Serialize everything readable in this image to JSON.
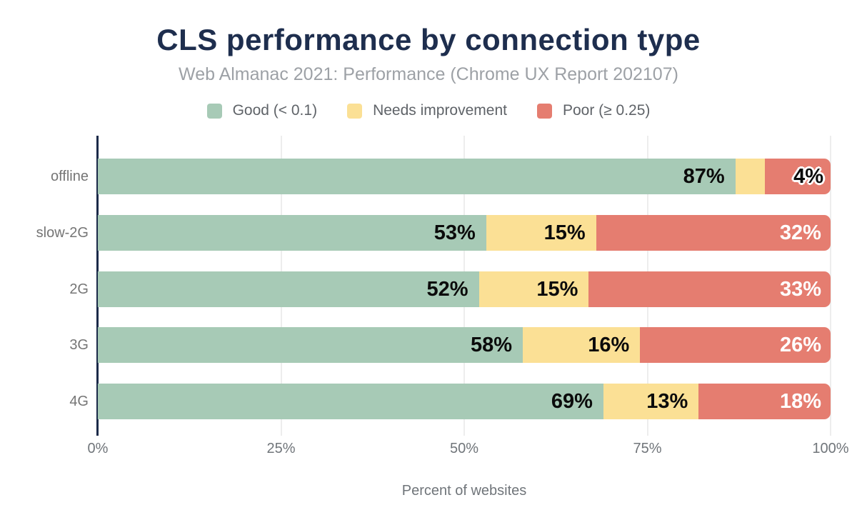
{
  "chart": {
    "title": "CLS performance by connection type",
    "subtitle": "Web Almanac 2021: Performance (Chrome UX Report 202107)",
    "x_axis_label": "Percent of websites"
  },
  "legend": {
    "items": [
      {
        "label": "Good (< 0.1)",
        "color": "#a7cab6"
      },
      {
        "label": "Needs improvement",
        "color": "#fbe095"
      },
      {
        "label": "Poor (≥ 0.25)",
        "color": "#e57d70"
      }
    ]
  },
  "x_axis": {
    "ticks": [
      {
        "label": "0%",
        "value": 0
      },
      {
        "label": "25%",
        "value": 25
      },
      {
        "label": "50%",
        "value": 50
      },
      {
        "label": "75%",
        "value": 75
      },
      {
        "label": "100%",
        "value": 100
      }
    ]
  },
  "chart_data": {
    "type": "bar",
    "orientation": "horizontal",
    "stacked": true,
    "title": "CLS performance by connection type",
    "subtitle": "Web Almanac 2021: Performance (Chrome UX Report 202107)",
    "xlabel": "Percent of websites",
    "xlim": [
      0,
      100
    ],
    "x_tick_labels": [
      "0%",
      "25%",
      "50%",
      "75%",
      "100%"
    ],
    "grid": "vertical",
    "legend_position": "top",
    "categories": [
      "offline",
      "slow-2G",
      "2G",
      "3G",
      "4G"
    ],
    "series": [
      {
        "name": "Good (< 0.1)",
        "key": "good",
        "color": "#a7cab6",
        "values": [
          87,
          53,
          52,
          58,
          69
        ]
      },
      {
        "name": "Needs improvement",
        "key": "needs-improvement",
        "color": "#fbe095",
        "values": [
          4,
          15,
          15,
          16,
          13
        ]
      },
      {
        "name": "Poor (≥ 0.25)",
        "key": "poor",
        "color": "#e57d70",
        "values": [
          9,
          32,
          33,
          26,
          18
        ]
      }
    ],
    "bar_labels": [
      {
        "category": "offline",
        "labels": [
          {
            "text": "87%",
            "style": "dark-inside"
          },
          {
            "text": "4%",
            "style": "halo-overflow-right"
          },
          {
            "text": "",
            "style": "none"
          }
        ]
      },
      {
        "category": "slow-2G",
        "labels": [
          {
            "text": "53%",
            "style": "dark-inside"
          },
          {
            "text": "15%",
            "style": "dark-inside"
          },
          {
            "text": "32%",
            "style": "light-inside"
          }
        ]
      },
      {
        "category": "2G",
        "labels": [
          {
            "text": "52%",
            "style": "dark-inside"
          },
          {
            "text": "15%",
            "style": "dark-inside"
          },
          {
            "text": "33%",
            "style": "light-inside"
          }
        ]
      },
      {
        "category": "3G",
        "labels": [
          {
            "text": "58%",
            "style": "dark-inside"
          },
          {
            "text": "16%",
            "style": "dark-inside"
          },
          {
            "text": "26%",
            "style": "light-inside"
          }
        ]
      },
      {
        "category": "4G",
        "labels": [
          {
            "text": "69%",
            "style": "dark-inside"
          },
          {
            "text": "13%",
            "style": "dark-inside"
          },
          {
            "text": "18%",
            "style": "light-inside"
          }
        ]
      }
    ]
  },
  "colors": {
    "background": "#ffffff",
    "title": "#1e2e4e",
    "subtitle": "#9da1a6",
    "axis_line": "#1b2a49",
    "gridline": "#ededed",
    "tick_label": "#70757a",
    "category_label": "#757575",
    "legend_label": "#5f6368",
    "bar_label_dark": "#0b0b0b",
    "bar_label_light": "#ffffff"
  }
}
